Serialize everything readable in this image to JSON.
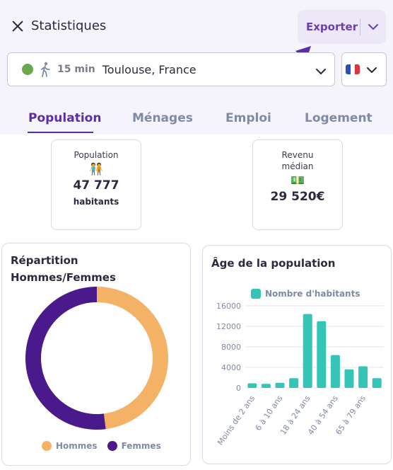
{
  "header": {
    "title": "Statistiques",
    "export_label": "Exporter"
  },
  "location": {
    "duration": "15 min",
    "city": "Toulouse, France"
  },
  "tabs": [
    "Population",
    "Ménages",
    "Emploi",
    "Logement"
  ],
  "active_tab": "Population",
  "stats": {
    "population": {
      "label": "Population",
      "value": "47 777",
      "unit": "habitants",
      "emoji": "🧑‍🤝‍🧑"
    },
    "revenue": {
      "label_line1": "Revenu",
      "label_line2": "médian",
      "value": "29 520€",
      "emoji": "💵"
    }
  },
  "colors": {
    "accent": "#5b2fa3",
    "hommes": "#f4b266",
    "femmes": "#4a1a8c",
    "bars": "#36c4b6"
  },
  "chart_data": [
    {
      "type": "pie",
      "title_line1": "Répartition",
      "title_line2": "Hommes/Femmes",
      "labels": [
        "Hommes",
        "Femmes"
      ],
      "values": [
        48,
        52
      ],
      "donut": true,
      "legend": "bottom"
    },
    {
      "type": "bar",
      "title": "Âge de la population",
      "series": [
        {
          "name": "Nombre d'habitants",
          "values": [
            900,
            800,
            1000,
            1900,
            14400,
            13000,
            6400,
            3600,
            4200,
            1900
          ]
        }
      ],
      "categories": [
        "Moins de 2 ans",
        "",
        "6 à 10 ans",
        "",
        "18 à 24 ans",
        "",
        "40 à 54 ans",
        "",
        "65 à 79 ans",
        ""
      ],
      "yticks": [
        "0",
        "4000",
        "8000",
        "12000",
        "16000"
      ],
      "ylim": [
        0,
        16000
      ],
      "grid": true,
      "legend": "top"
    }
  ]
}
